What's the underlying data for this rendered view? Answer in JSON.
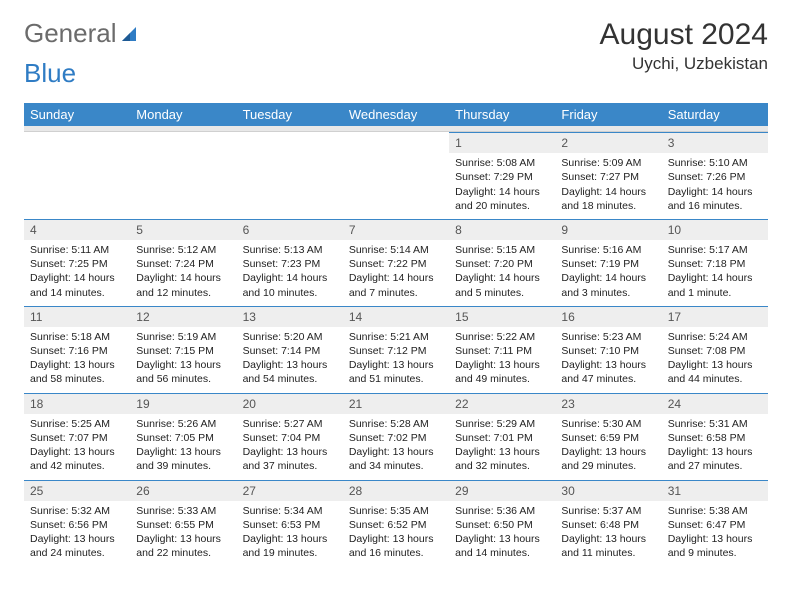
{
  "logo": {
    "text1": "General",
    "text2": "Blue"
  },
  "title": "August 2024",
  "location": "Uychi, Uzbekistan",
  "colors": {
    "headerBg": "#3a87c8",
    "headerText": "#ffffff",
    "dayNumBg": "#eeeeee",
    "borderAccent": "#3a87c8",
    "bodyText": "#222222"
  },
  "dayNames": [
    "Sunday",
    "Monday",
    "Tuesday",
    "Wednesday",
    "Thursday",
    "Friday",
    "Saturday"
  ],
  "weeks": [
    [
      null,
      null,
      null,
      null,
      {
        "n": "1",
        "sr": "5:08 AM",
        "ss": "7:29 PM",
        "dl": "14 hours and 20 minutes."
      },
      {
        "n": "2",
        "sr": "5:09 AM",
        "ss": "7:27 PM",
        "dl": "14 hours and 18 minutes."
      },
      {
        "n": "3",
        "sr": "5:10 AM",
        "ss": "7:26 PM",
        "dl": "14 hours and 16 minutes."
      }
    ],
    [
      {
        "n": "4",
        "sr": "5:11 AM",
        "ss": "7:25 PM",
        "dl": "14 hours and 14 minutes."
      },
      {
        "n": "5",
        "sr": "5:12 AM",
        "ss": "7:24 PM",
        "dl": "14 hours and 12 minutes."
      },
      {
        "n": "6",
        "sr": "5:13 AM",
        "ss": "7:23 PM",
        "dl": "14 hours and 10 minutes."
      },
      {
        "n": "7",
        "sr": "5:14 AM",
        "ss": "7:22 PM",
        "dl": "14 hours and 7 minutes."
      },
      {
        "n": "8",
        "sr": "5:15 AM",
        "ss": "7:20 PM",
        "dl": "14 hours and 5 minutes."
      },
      {
        "n": "9",
        "sr": "5:16 AM",
        "ss": "7:19 PM",
        "dl": "14 hours and 3 minutes."
      },
      {
        "n": "10",
        "sr": "5:17 AM",
        "ss": "7:18 PM",
        "dl": "14 hours and 1 minute."
      }
    ],
    [
      {
        "n": "11",
        "sr": "5:18 AM",
        "ss": "7:16 PM",
        "dl": "13 hours and 58 minutes."
      },
      {
        "n": "12",
        "sr": "5:19 AM",
        "ss": "7:15 PM",
        "dl": "13 hours and 56 minutes."
      },
      {
        "n": "13",
        "sr": "5:20 AM",
        "ss": "7:14 PM",
        "dl": "13 hours and 54 minutes."
      },
      {
        "n": "14",
        "sr": "5:21 AM",
        "ss": "7:12 PM",
        "dl": "13 hours and 51 minutes."
      },
      {
        "n": "15",
        "sr": "5:22 AM",
        "ss": "7:11 PM",
        "dl": "13 hours and 49 minutes."
      },
      {
        "n": "16",
        "sr": "5:23 AM",
        "ss": "7:10 PM",
        "dl": "13 hours and 47 minutes."
      },
      {
        "n": "17",
        "sr": "5:24 AM",
        "ss": "7:08 PM",
        "dl": "13 hours and 44 minutes."
      }
    ],
    [
      {
        "n": "18",
        "sr": "5:25 AM",
        "ss": "7:07 PM",
        "dl": "13 hours and 42 minutes."
      },
      {
        "n": "19",
        "sr": "5:26 AM",
        "ss": "7:05 PM",
        "dl": "13 hours and 39 minutes."
      },
      {
        "n": "20",
        "sr": "5:27 AM",
        "ss": "7:04 PM",
        "dl": "13 hours and 37 minutes."
      },
      {
        "n": "21",
        "sr": "5:28 AM",
        "ss": "7:02 PM",
        "dl": "13 hours and 34 minutes."
      },
      {
        "n": "22",
        "sr": "5:29 AM",
        "ss": "7:01 PM",
        "dl": "13 hours and 32 minutes."
      },
      {
        "n": "23",
        "sr": "5:30 AM",
        "ss": "6:59 PM",
        "dl": "13 hours and 29 minutes."
      },
      {
        "n": "24",
        "sr": "5:31 AM",
        "ss": "6:58 PM",
        "dl": "13 hours and 27 minutes."
      }
    ],
    [
      {
        "n": "25",
        "sr": "5:32 AM",
        "ss": "6:56 PM",
        "dl": "13 hours and 24 minutes."
      },
      {
        "n": "26",
        "sr": "5:33 AM",
        "ss": "6:55 PM",
        "dl": "13 hours and 22 minutes."
      },
      {
        "n": "27",
        "sr": "5:34 AM",
        "ss": "6:53 PM",
        "dl": "13 hours and 19 minutes."
      },
      {
        "n": "28",
        "sr": "5:35 AM",
        "ss": "6:52 PM",
        "dl": "13 hours and 16 minutes."
      },
      {
        "n": "29",
        "sr": "5:36 AM",
        "ss": "6:50 PM",
        "dl": "13 hours and 14 minutes."
      },
      {
        "n": "30",
        "sr": "5:37 AM",
        "ss": "6:48 PM",
        "dl": "13 hours and 11 minutes."
      },
      {
        "n": "31",
        "sr": "5:38 AM",
        "ss": "6:47 PM",
        "dl": "13 hours and 9 minutes."
      }
    ]
  ],
  "labels": {
    "sunrise": "Sunrise: ",
    "sunset": "Sunset: ",
    "daylight": "Daylight: "
  }
}
